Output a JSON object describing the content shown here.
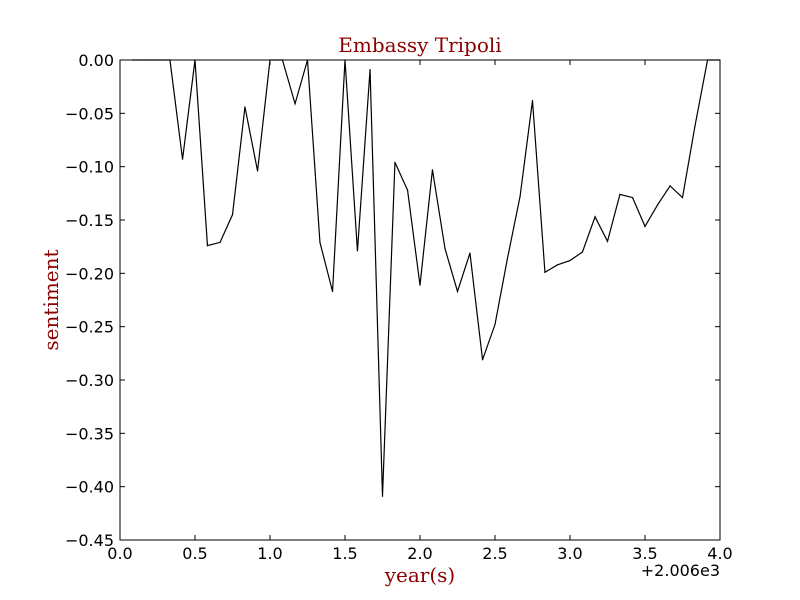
{
  "chart_data": {
    "type": "line",
    "title": "Embassy Tripoli",
    "xlabel": "year(s)",
    "ylabel": "sentiment",
    "x_offset_label": "+2.006e3",
    "xlim": [
      0.0,
      4.0
    ],
    "ylim": [
      -0.45,
      0.0
    ],
    "x_ticks": [
      "0.0",
      "0.5",
      "1.0",
      "1.5",
      "2.0",
      "2.5",
      "3.0",
      "3.5",
      "4.0"
    ],
    "y_ticks": [
      "0.00",
      "−0.05",
      "−0.10",
      "−0.15",
      "−0.20",
      "−0.25",
      "−0.30",
      "−0.35",
      "−0.40",
      "−0.45"
    ],
    "grid": false,
    "legend": "none",
    "colors": {
      "line": "#000000",
      "title": "#8b0000",
      "labels": "#8b0000"
    },
    "series": [
      {
        "x": [
          0.083,
          0.167,
          0.25,
          0.333,
          0.417,
          0.5,
          0.583,
          0.667,
          0.75,
          0.833,
          0.917,
          1.0,
          1.083,
          1.167,
          1.25,
          1.333,
          1.417,
          1.5,
          1.583,
          1.667,
          1.75,
          1.833,
          1.917,
          2.0,
          2.083,
          2.167,
          2.25,
          2.333,
          2.417,
          2.5,
          2.583,
          2.667,
          2.75,
          2.833,
          2.917,
          3.0,
          3.083,
          3.167,
          3.25,
          3.333,
          3.417,
          3.5,
          3.583,
          3.667,
          3.75,
          3.833,
          3.917,
          4.0
        ],
        "values": [
          0.0,
          0.0,
          0.0,
          0.0,
          -0.093,
          0.0,
          -0.174,
          -0.171,
          -0.145,
          -0.044,
          -0.104,
          0.0,
          0.0,
          -0.041,
          0.0,
          -0.171,
          -0.217,
          0.0,
          -0.179,
          -0.009,
          -0.409,
          -0.096,
          -0.122,
          -0.211,
          -0.103,
          -0.177,
          -0.217,
          -0.181,
          -0.281,
          -0.248,
          -0.186,
          -0.128,
          -0.038,
          -0.199,
          -0.192,
          -0.188,
          -0.18,
          -0.147,
          -0.17,
          -0.126,
          -0.129,
          -0.156,
          -0.136,
          -0.118,
          -0.129,
          -0.062,
          0.0,
          0.0
        ]
      }
    ]
  }
}
